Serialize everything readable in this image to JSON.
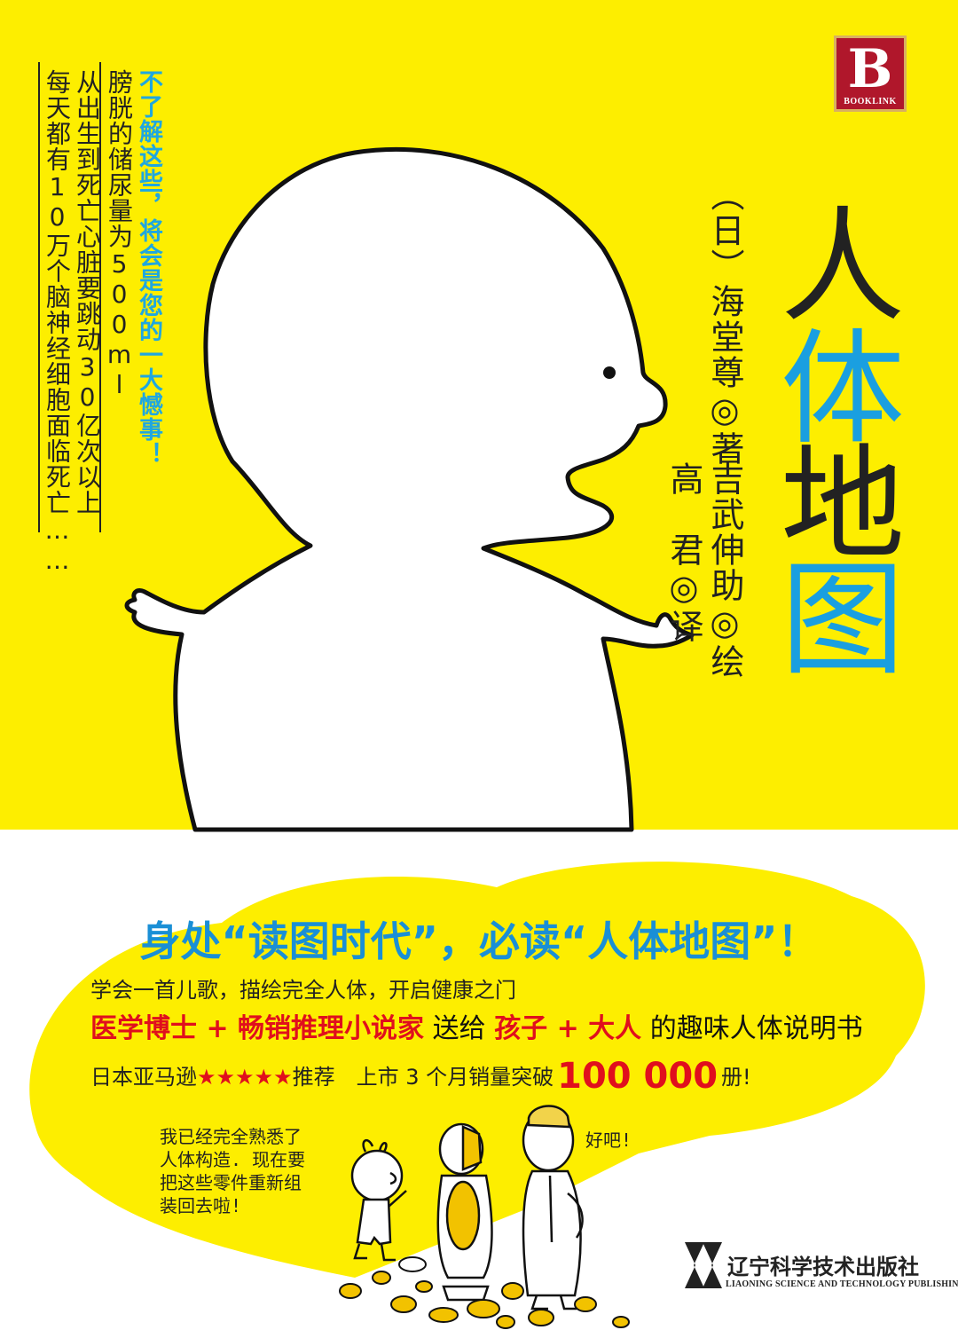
{
  "publisher_logo": {
    "letter": "B",
    "name": "BOOKLINK"
  },
  "title": [
    "人",
    "体",
    "地",
    "图"
  ],
  "blurb": {
    "accent_line": "不了解这些，将会是您的一大憾事！",
    "lines": [
      "膀胱的储尿量为500ml",
      "从出生到死亡心脏要跳动30亿次以上",
      "每天都有10万个脑神经细胞面临死亡……"
    ]
  },
  "credits": {
    "author": "（日）海堂尊◎著",
    "illustrator": "吉武伸助◎绘",
    "translator": "高　君◎译"
  },
  "slogan": "身处“读图时代”，必读“人体地图”！",
  "tagline": "学会一首儿歌，描绘完全人体，开启健康之门",
  "feature": {
    "part1": "医学博士 + 畅销推理小说家",
    "part2": "送给",
    "part3": "孩子 + 大人",
    "part4": "的趣味人体说明书"
  },
  "sales": {
    "prefix": "日本亚马逊",
    "stars": "★★★★★",
    "recommend": "推荐　上市 3 个月销量突破",
    "number": "100 000",
    "suffix": "册!"
  },
  "speech": {
    "child": "我已经完全熟悉了\n人体构造. 现在要\n把这些零件重新组\n装回去啦!",
    "doctor": "好吧!"
  },
  "publisher": {
    "name_cn": "辽宁科学技术出版社",
    "name_en": "LIAONING SCIENCE AND TECHNOLOGY PUBLISHING HOUSE"
  },
  "colors": {
    "cover_yellow": "#fdee00",
    "title_dark": "#222222",
    "title_blue": "#1a9fe0",
    "slogan_blue": "#1a8fd6",
    "highlight_red": "#e00f1d"
  }
}
